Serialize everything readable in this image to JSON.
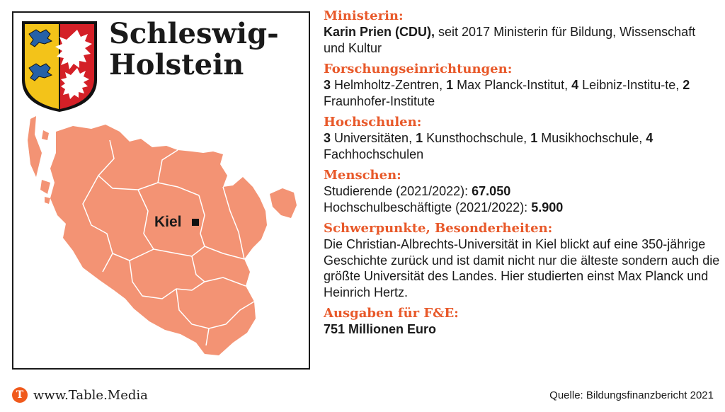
{
  "header": {
    "title_line1": "Schleswig-",
    "title_line2": "Holstein"
  },
  "map": {
    "city_label": "Kiel",
    "land_color": "#f39374",
    "border_color": "#ffffff"
  },
  "coat_of_arms": {
    "shield_icon": "coat-of-arms-icon",
    "colors": {
      "gold": "#f3c319",
      "blue": "#2561a8",
      "red": "#d42027",
      "white": "#ffffff"
    }
  },
  "info": {
    "minister": {
      "heading": "Ministerin:",
      "name": "Karin Prien (CDU),",
      "text": " seit 2017 Ministerin für Bildung, Wissenschaft und Kultur"
    },
    "research": {
      "heading": "Forschungseinrichtungen:",
      "n1": "3",
      "t1": " Helmholtz-Zentren, ",
      "n2": "1",
      "t2": " Max Planck-Institut, ",
      "n3": "4",
      "t3": " Leibniz-Institu-te, ",
      "n4": "2",
      "t4": " Fraunhofer-Institute"
    },
    "universities": {
      "heading": "Hochschulen:",
      "n1": "3",
      "t1": " Universitäten, ",
      "n2": "1",
      "t2": " Kunsthochschule, ",
      "n3": "1",
      "t3": " Musikhochschule, ",
      "n4": "4",
      "t4": " Fachhochschulen"
    },
    "people": {
      "heading": "Menschen:",
      "students_label": "Studierende (2021/2022): ",
      "students_value": "67.050",
      "staff_label": "Hochschulbeschäftigte (2021/2022): ",
      "staff_value": "5.900"
    },
    "focus": {
      "heading": "Schwerpunkte, Besonderheiten:",
      "text": "Die Christian-Albrechts-Universität in Kiel blickt auf eine 350-jährige Geschichte zurück und ist damit nicht nur die älteste sondern auch die größte Universität des Landes. Hier studierten einst Max Planck und Heinrich Hertz."
    },
    "spending": {
      "heading": "Ausgaben für F&E:",
      "value": "751 Millionen Euro"
    }
  },
  "footer": {
    "logo_letter": "T",
    "brand": "www.Table.Media",
    "source": "Quelle: Bildungsfinanzbericht 2021"
  },
  "accent_color": "#e8592a"
}
